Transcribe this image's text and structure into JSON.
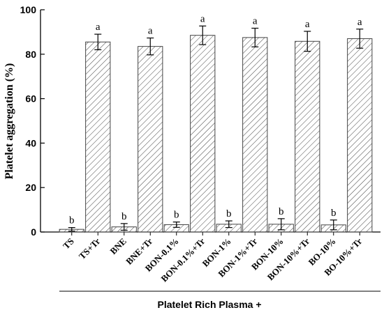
{
  "chart_data": {
    "type": "bar",
    "y_label": "Platelet aggregation (%)",
    "x_label": "Platelet Rich Plasma +",
    "categories": [
      "TS",
      "TS+Tr",
      "BNE",
      "BNE+Tr",
      "BON-0.1%",
      "BON-0.1%+Tr",
      "BON-1%",
      "BON-1%+Tr",
      "BON-10%",
      "BON-10%+Tr",
      "BO-10%",
      "BO-10%+Tr"
    ],
    "values": [
      1.2,
      85.5,
      2.3,
      83.5,
      3.3,
      88.5,
      3.5,
      87.5,
      3.5,
      85.8,
      3.2,
      87.0
    ],
    "errors": [
      0.8,
      3.5,
      1.5,
      3.8,
      1.2,
      4.2,
      1.5,
      4.2,
      2.5,
      4.5,
      2.2,
      4.3
    ],
    "letters": [
      "b",
      "a",
      "b",
      "a",
      "b",
      "a",
      "b",
      "a",
      "b",
      "a",
      "b",
      "a"
    ],
    "color": "#444444",
    "ylim": [
      0,
      100
    ],
    "yticks": [
      0,
      20,
      40,
      60,
      80,
      100
    ]
  }
}
